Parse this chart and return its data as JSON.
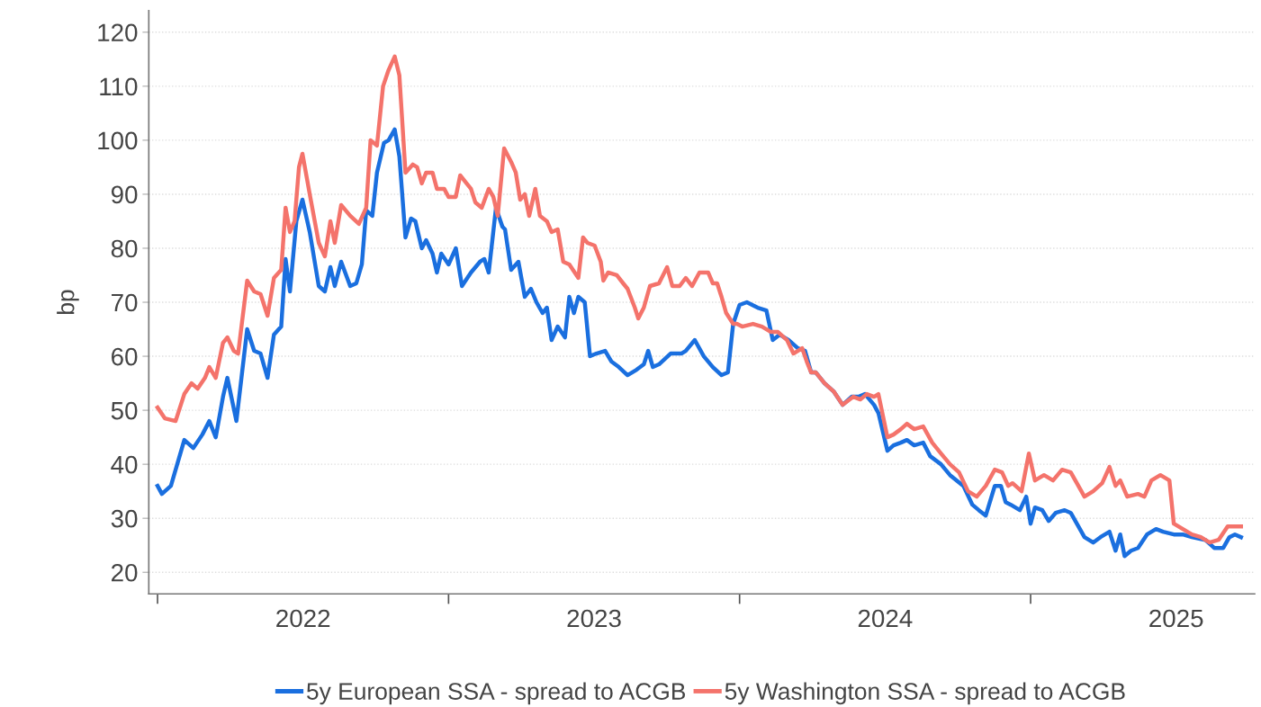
{
  "chart_data": {
    "type": "line",
    "ylabel": "bp",
    "xlim": [
      2021.97,
      2025.77
    ],
    "ylim": [
      16,
      124
    ],
    "xticks": [
      {
        "value": 2022,
        "label": null
      },
      {
        "value": 2023,
        "label": null
      },
      {
        "value": 2024,
        "label": null
      },
      {
        "value": 2025,
        "label": null
      },
      {
        "value": 2022.5,
        "label": "2022"
      },
      {
        "value": 2023.5,
        "label": "2023"
      },
      {
        "value": 2024.5,
        "label": "2024"
      },
      {
        "value": 2025.5,
        "label": "2025"
      }
    ],
    "yticks": [
      20,
      30,
      40,
      50,
      60,
      70,
      80,
      90,
      100,
      110,
      120
    ],
    "grid": "y",
    "legend": "bottom",
    "line_style": "solid",
    "series": [
      {
        "name": "5y European SSA - spread to ACGB",
        "color": "#1a6fdf",
        "x": [
          2022.0,
          2022.015,
          2022.046,
          2022.092,
          2022.123,
          2022.154,
          2022.178,
          2022.2,
          2022.225,
          2022.24,
          2022.271,
          2022.308,
          2022.332,
          2022.354,
          2022.378,
          2022.4,
          2022.425,
          2022.44,
          2022.455,
          2022.477,
          2022.498,
          2022.523,
          2022.554,
          2022.575,
          2022.594,
          2022.609,
          2022.631,
          2022.662,
          2022.683,
          2022.702,
          2022.717,
          2022.738,
          2022.754,
          2022.778,
          2022.794,
          2022.815,
          2022.831,
          2022.852,
          2022.871,
          2022.886,
          2022.908,
          2022.923,
          2022.945,
          2022.96,
          2022.975,
          2023.0,
          2023.025,
          2023.046,
          2023.077,
          2023.108,
          2023.123,
          2023.138,
          2023.163,
          2023.185,
          2023.194,
          2023.215,
          2023.24,
          2023.262,
          2023.283,
          2023.302,
          2023.323,
          2023.338,
          2023.354,
          2023.375,
          2023.4,
          2023.415,
          2023.431,
          2023.446,
          2023.468,
          2023.486,
          2023.508,
          2023.538,
          2023.56,
          2023.585,
          2023.615,
          2023.646,
          2023.671,
          2023.686,
          2023.702,
          2023.723,
          2023.763,
          2023.8,
          2023.815,
          2023.846,
          2023.877,
          2023.908,
          2023.938,
          2023.96,
          2023.978,
          2024.0,
          2024.025,
          2024.062,
          2024.092,
          2024.114,
          2024.138,
          2024.169,
          2024.2,
          2024.225,
          2024.246,
          2024.262,
          2024.292,
          2024.323,
          2024.354,
          2024.385,
          2024.409,
          2024.431,
          2024.462,
          2024.477,
          2024.508,
          2024.529,
          2024.554,
          2024.575,
          2024.6,
          2024.631,
          2024.655,
          2024.692,
          2024.723,
          2024.769,
          2024.8,
          2024.822,
          2024.846,
          2024.877,
          2024.898,
          2024.914,
          2024.932,
          2024.963,
          2024.985,
          2025.0,
          2025.015,
          2025.04,
          2025.062,
          2025.086,
          2025.117,
          2025.138,
          2025.185,
          2025.215,
          2025.24,
          2025.271,
          2025.292,
          2025.308,
          2025.323,
          2025.345,
          2025.369,
          2025.4,
          2025.431,
          2025.455,
          2025.492,
          2025.523,
          2025.554,
          2025.6,
          2025.631,
          2025.662,
          2025.683,
          2025.702,
          2025.723
        ],
        "values": [
          36,
          34.5,
          36,
          44.5,
          43,
          45.5,
          48,
          45,
          52.5,
          56,
          48,
          65,
          61,
          60.5,
          56,
          64,
          65.5,
          78,
          72,
          85,
          89,
          83,
          73,
          72,
          76.5,
          73,
          77.5,
          73,
          73.5,
          77,
          87,
          86,
          94,
          99.5,
          100,
          102,
          97,
          82,
          85.5,
          85,
          80,
          81.5,
          79,
          75.5,
          79,
          77,
          80,
          73,
          75.5,
          77.5,
          78,
          75.5,
          87.5,
          84,
          83.5,
          76,
          77.5,
          71,
          72.5,
          70,
          68,
          69,
          63,
          65.5,
          63.5,
          71,
          68,
          71,
          70,
          60,
          60.5,
          61,
          59,
          58,
          56.5,
          57.5,
          58.5,
          61,
          58,
          58.5,
          60.5,
          60.5,
          61,
          63,
          60,
          58,
          56.5,
          57,
          66,
          69.5,
          70,
          69,
          68.5,
          63,
          64,
          63,
          61.5,
          61,
          57,
          57,
          55,
          53.5,
          51,
          52.5,
          52.5,
          53,
          51,
          49.5,
          42.5,
          43.5,
          44,
          44.5,
          43.5,
          44,
          41.5,
          40,
          38,
          36,
          32.5,
          31.5,
          30.5,
          36,
          36,
          33,
          32.5,
          31.5,
          34,
          29,
          32,
          31.5,
          29.5,
          31,
          31.5,
          31,
          26.5,
          25.5,
          26.5,
          27.5,
          24,
          27,
          23,
          24,
          24.5,
          27,
          28,
          27.5,
          27,
          27,
          26.5,
          26,
          24.5,
          24.5,
          26.5,
          27,
          26.5
        ]
      },
      {
        "name": "5y Washington SSA - spread to ACGB",
        "color": "#f4736b",
        "x": [
          2022.0,
          2022.025,
          2022.062,
          2022.092,
          2022.117,
          2022.138,
          2022.163,
          2022.178,
          2022.2,
          2022.225,
          2022.24,
          2022.262,
          2022.277,
          2022.308,
          2022.332,
          2022.354,
          2022.378,
          2022.4,
          2022.425,
          2022.44,
          2022.455,
          2022.471,
          2022.486,
          2022.498,
          2022.523,
          2022.554,
          2022.575,
          2022.594,
          2022.609,
          2022.631,
          2022.662,
          2022.692,
          2022.717,
          2022.732,
          2022.754,
          2022.775,
          2022.794,
          2022.815,
          2022.831,
          2022.852,
          2022.877,
          2022.892,
          2022.908,
          2022.923,
          2022.945,
          2022.96,
          2022.985,
          2023.0,
          2023.025,
          2023.04,
          2023.062,
          2023.077,
          2023.092,
          2023.114,
          2023.138,
          2023.154,
          2023.169,
          2023.191,
          2023.215,
          2023.231,
          2023.246,
          2023.262,
          2023.277,
          2023.298,
          2023.314,
          2023.338,
          2023.354,
          2023.375,
          2023.394,
          2023.415,
          2023.446,
          2023.462,
          2023.477,
          2023.502,
          2023.523,
          2023.532,
          2023.548,
          2023.578,
          2023.6,
          2023.615,
          2023.64,
          2023.652,
          2023.671,
          2023.692,
          2023.723,
          2023.751,
          2023.769,
          2023.794,
          2023.815,
          2023.837,
          2023.862,
          2023.892,
          2023.908,
          2023.923,
          2023.938,
          2023.954,
          2023.978,
          2023.991,
          2024.009,
          2024.046,
          2024.077,
          2024.108,
          2024.132,
          2024.163,
          2024.185,
          2024.215,
          2024.231,
          2024.246,
          2024.262,
          2024.292,
          2024.323,
          2024.354,
          2024.391,
          2024.415,
          2024.437,
          2024.462,
          2024.477,
          2024.508,
          2024.529,
          2024.554,
          2024.575,
          2024.6,
          2024.631,
          2024.662,
          2024.692,
          2024.723,
          2024.754,
          2024.785,
          2024.815,
          2024.846,
          2024.877,
          2024.902,
          2024.923,
          2024.938,
          2024.969,
          2024.994,
          2025.015,
          2025.046,
          2025.077,
          2025.108,
          2025.138,
          2025.185,
          2025.215,
          2025.246,
          2025.271,
          2025.292,
          2025.308,
          2025.332,
          2025.369,
          2025.391,
          2025.415,
          2025.446,
          2025.477,
          2025.492,
          2025.523,
          2025.554,
          2025.585,
          2025.615,
          2025.646,
          2025.677,
          2025.723
        ],
        "values": [
          50.5,
          48.5,
          48,
          53,
          55,
          54,
          56,
          58,
          56,
          62.5,
          63.5,
          61,
          60.5,
          74,
          72,
          71.5,
          67.5,
          74.5,
          76,
          87.5,
          83,
          85,
          95,
          97.5,
          90,
          81,
          78.5,
          85,
          81,
          88,
          86,
          84.5,
          87.5,
          100,
          99,
          110,
          113,
          115.5,
          112,
          94,
          95.5,
          95,
          92,
          94,
          94,
          91,
          91,
          89.5,
          89.5,
          93.5,
          92,
          91,
          88.5,
          87.5,
          91,
          89.5,
          86,
          98.5,
          96,
          94,
          89,
          90,
          86,
          91,
          86,
          85,
          83,
          83.5,
          77.5,
          77,
          74.5,
          82,
          81,
          80.5,
          77.5,
          74,
          75.5,
          75,
          73.5,
          72.5,
          69,
          67,
          69,
          73,
          73.5,
          76.5,
          73,
          73,
          74.5,
          73,
          75.5,
          75.5,
          73.5,
          73.5,
          71,
          68,
          66,
          66,
          65.5,
          66,
          65.5,
          64.5,
          64.5,
          63,
          60.5,
          61.5,
          59,
          57,
          57,
          55,
          53.5,
          51,
          52.5,
          52,
          53,
          52.5,
          53,
          45,
          45.5,
          46.5,
          47.5,
          46.5,
          47,
          44,
          42,
          40,
          38.5,
          35,
          34,
          36,
          39,
          38.5,
          36,
          36.5,
          35,
          42,
          37,
          38,
          37,
          39,
          38.5,
          34,
          35,
          36.5,
          39.5,
          36,
          37,
          34,
          34.5,
          34,
          37,
          38,
          37,
          29,
          28,
          27,
          26.5,
          25.5,
          26,
          28.5,
          28.5
        ]
      }
    ]
  }
}
